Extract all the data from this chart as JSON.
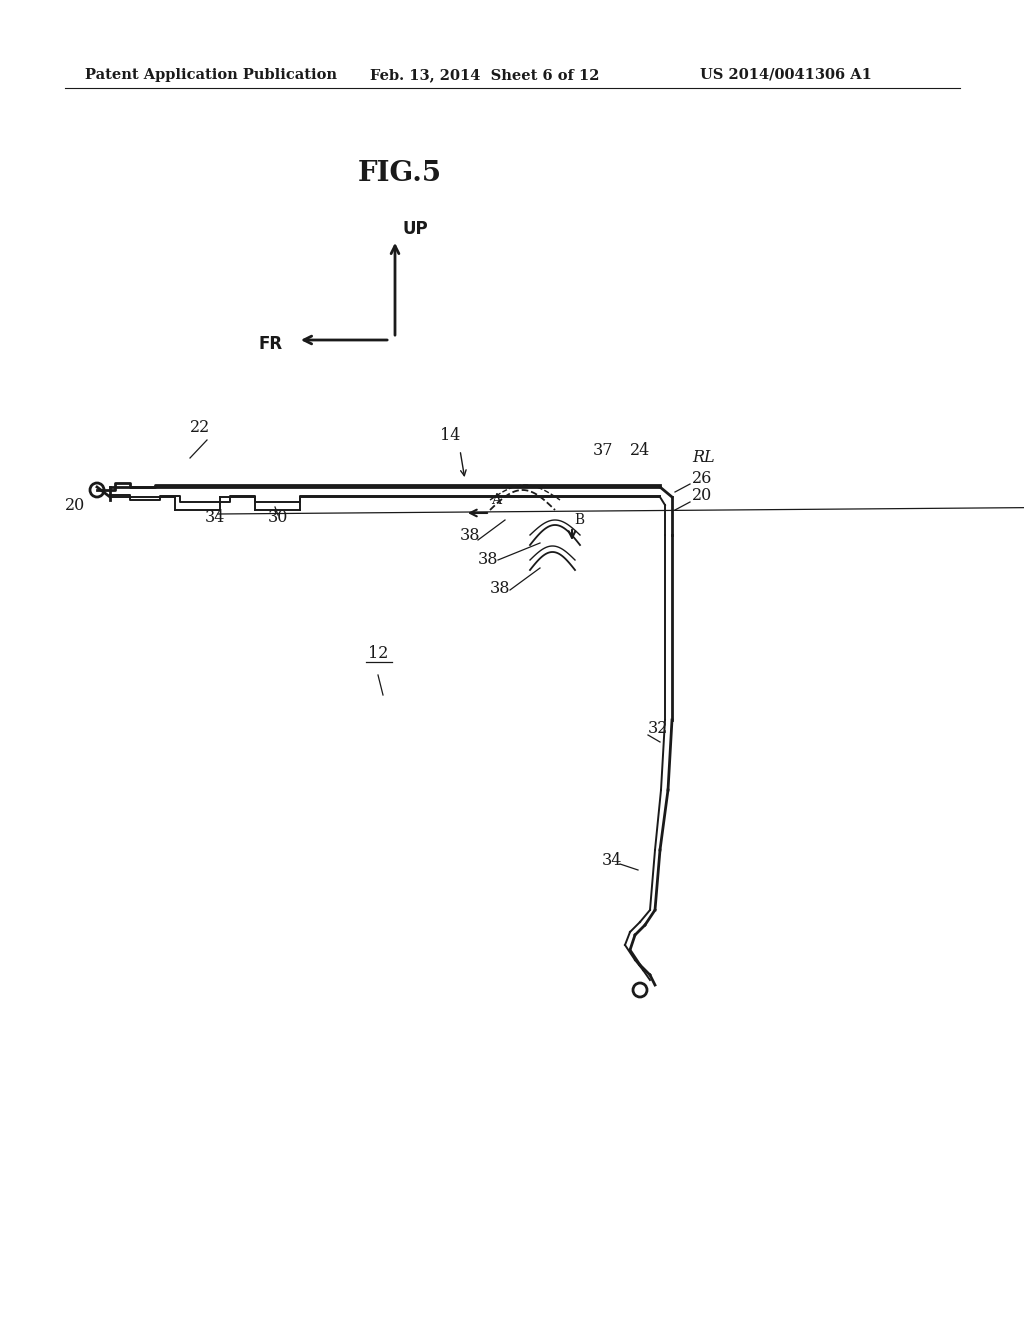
{
  "header_left": "Patent Application Publication",
  "header_mid": "Feb. 13, 2014  Sheet 6 of 12",
  "header_right": "US 2014/0041306 A1",
  "title": "FIG.5",
  "background_color": "#ffffff",
  "line_color": "#1a1a1a",
  "text_color": "#1a1a1a",
  "fig_width": 10.24,
  "fig_height": 13.2,
  "dpi": 100
}
